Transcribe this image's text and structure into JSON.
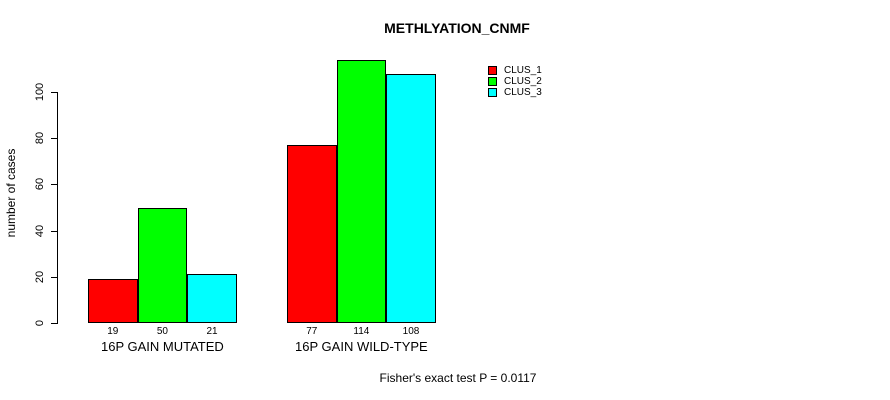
{
  "chart_data": {
    "type": "bar",
    "title": "METHLYATION_CNMF",
    "xlabel": "",
    "ylabel": "number of cases",
    "ylim": [
      0,
      115
    ],
    "yticks": [
      0,
      20,
      40,
      60,
      80,
      100
    ],
    "categories": [
      "16P GAIN MUTATED",
      "16P GAIN WILD-TYPE"
    ],
    "series": [
      {
        "name": "CLUS_1",
        "color": "#ff0000",
        "values": [
          19,
          77
        ]
      },
      {
        "name": "CLUS_2",
        "color": "#00ff00",
        "values": [
          50,
          114
        ]
      },
      {
        "name": "CLUS_3",
        "color": "#00ffff",
        "values": [
          21,
          108
        ]
      }
    ],
    "bar_value_labels": [
      [
        "19",
        "50",
        "21"
      ],
      [
        "77",
        "114",
        "108"
      ]
    ],
    "annotation": "Fisher's exact test P = 0.0117",
    "legend_position": "top-right",
    "grid": false,
    "bar_border_color": "#000000",
    "background_color": "#ffffff"
  }
}
